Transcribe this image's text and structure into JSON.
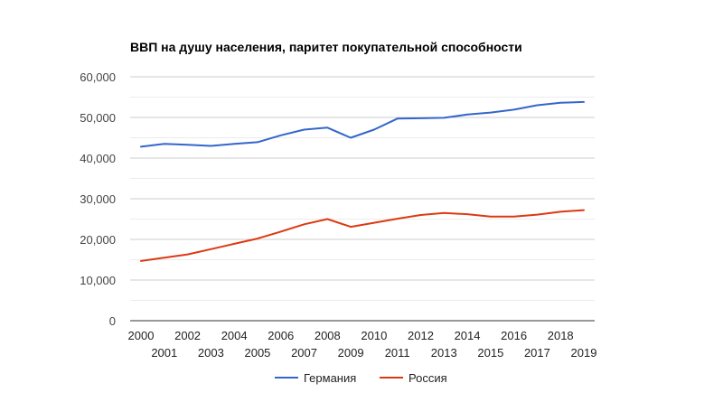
{
  "chart_data": {
    "type": "line",
    "title": "ВВП на душу населения, паритет покупательной способности",
    "xlabel": "",
    "ylabel": "",
    "x": [
      2000,
      2001,
      2002,
      2003,
      2004,
      2005,
      2006,
      2007,
      2008,
      2009,
      2010,
      2011,
      2012,
      2013,
      2014,
      2015,
      2016,
      2017,
      2018,
      2019
    ],
    "x_tick_labels": [
      "2000",
      "2001",
      "2002",
      "2003",
      "2004",
      "2005",
      "2006",
      "2007",
      "2008",
      "2009",
      "2010",
      "2011",
      "2012",
      "2013",
      "2014",
      "2015",
      "2016",
      "2017",
      "2018",
      "2019"
    ],
    "ylim": [
      0,
      60000
    ],
    "y_ticks": [
      0,
      10000,
      20000,
      30000,
      40000,
      50000,
      60000
    ],
    "y_tick_labels": [
      "0",
      "10,000",
      "20,000",
      "30,000",
      "40,000",
      "50,000",
      "60,000"
    ],
    "grid": true,
    "legend_position": "bottom",
    "series": [
      {
        "name": "Германия",
        "color": "#3366cc",
        "values": [
          42800,
          43500,
          43300,
          43000,
          43500,
          43900,
          45600,
          47000,
          47500,
          45000,
          47000,
          49700,
          49800,
          49900,
          50700,
          51200,
          51900,
          53000,
          53600,
          53800
        ]
      },
      {
        "name": "Россия",
        "color": "#dc3912",
        "values": [
          14700,
          15500,
          16300,
          17600,
          18900,
          20200,
          21900,
          23700,
          25000,
          23100,
          24100,
          25100,
          26000,
          26500,
          26200,
          25600,
          25600,
          26100,
          26800,
          27200
        ]
      }
    ]
  }
}
